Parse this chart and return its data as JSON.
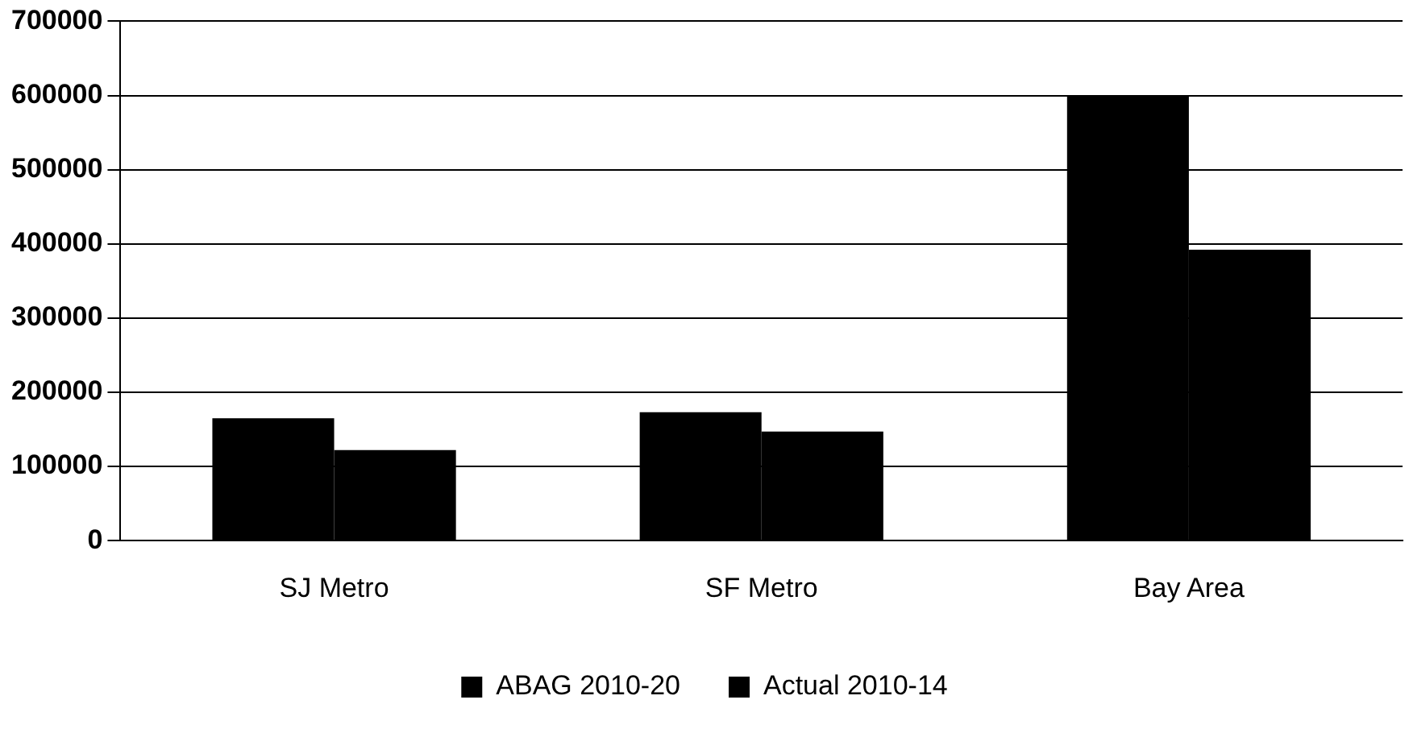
{
  "chart_data": {
    "type": "bar",
    "categories": [
      "SJ Metro",
      "SF Metro",
      "Bay Area"
    ],
    "series": [
      {
        "name": "ABAG 2010-20",
        "color": "#000000",
        "values": [
          165000,
          173000,
          600000
        ]
      },
      {
        "name": "Actual 2010-14",
        "color": "#000000",
        "values": [
          122000,
          147000,
          392000
        ]
      }
    ],
    "ylim": [
      0,
      700000
    ],
    "yticks": [
      0,
      100000,
      200000,
      300000,
      400000,
      500000,
      600000,
      700000
    ],
    "grid": "y",
    "legend": "bottom"
  }
}
